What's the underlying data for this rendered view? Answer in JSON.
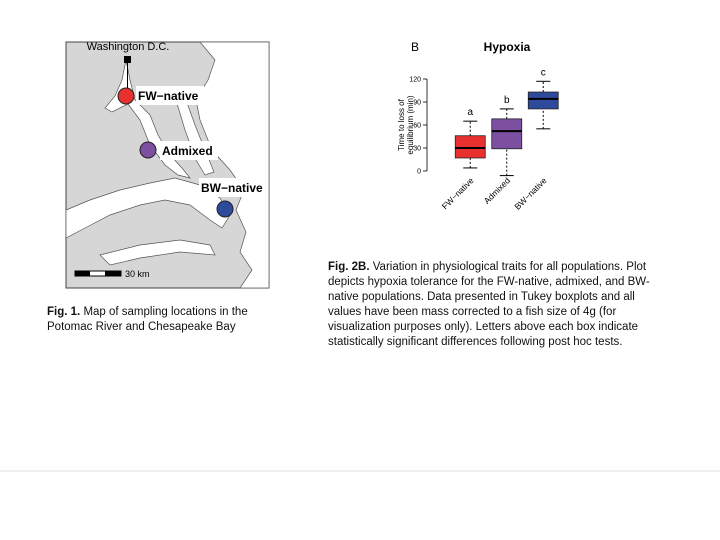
{
  "map": {
    "city": "Washington D.C.",
    "sites": [
      "FW−native",
      "Admixed",
      "BW−native"
    ],
    "scale": "30 km"
  },
  "figure1_caption": {
    "label": "Fig. 1.",
    "text": "Map of sampling locations in the Potomac River and Chesapeake Bay"
  },
  "chart_data": {
    "type": "boxplot",
    "panel": "B",
    "title": "Hypoxia",
    "ylabel": [
      "Time to loss of",
      "equilibrium (min)"
    ],
    "categories": [
      "FW−native",
      "Admixed",
      "BW−native"
    ],
    "colors": [
      "#e8312f",
      "#7d4fa0",
      "#2d4a9c"
    ],
    "whisker_low": [
      4,
      -6,
      55
    ],
    "q1": [
      17,
      29,
      81
    ],
    "median": [
      30,
      52,
      94
    ],
    "q3": [
      46,
      68,
      103
    ],
    "whisker_high": [
      65,
      81,
      117
    ],
    "letters": [
      "a",
      "b",
      "c"
    ],
    "ylim": [
      0,
      120
    ],
    "yticks": [
      0,
      30,
      60,
      90,
      120
    ]
  },
  "figure2_caption": {
    "label": "Fig. 2B.",
    "text": "Variation in physiological traits for all populations. Plot depicts hypoxia tolerance for the FW-native, admixed, and BW-native populations. Data presented in Tukey boxplots and all values have been mass corrected to a fish size of 4g (for visualization purposes only). Letters above each box indicate statistically significant differences following post hoc tests."
  }
}
